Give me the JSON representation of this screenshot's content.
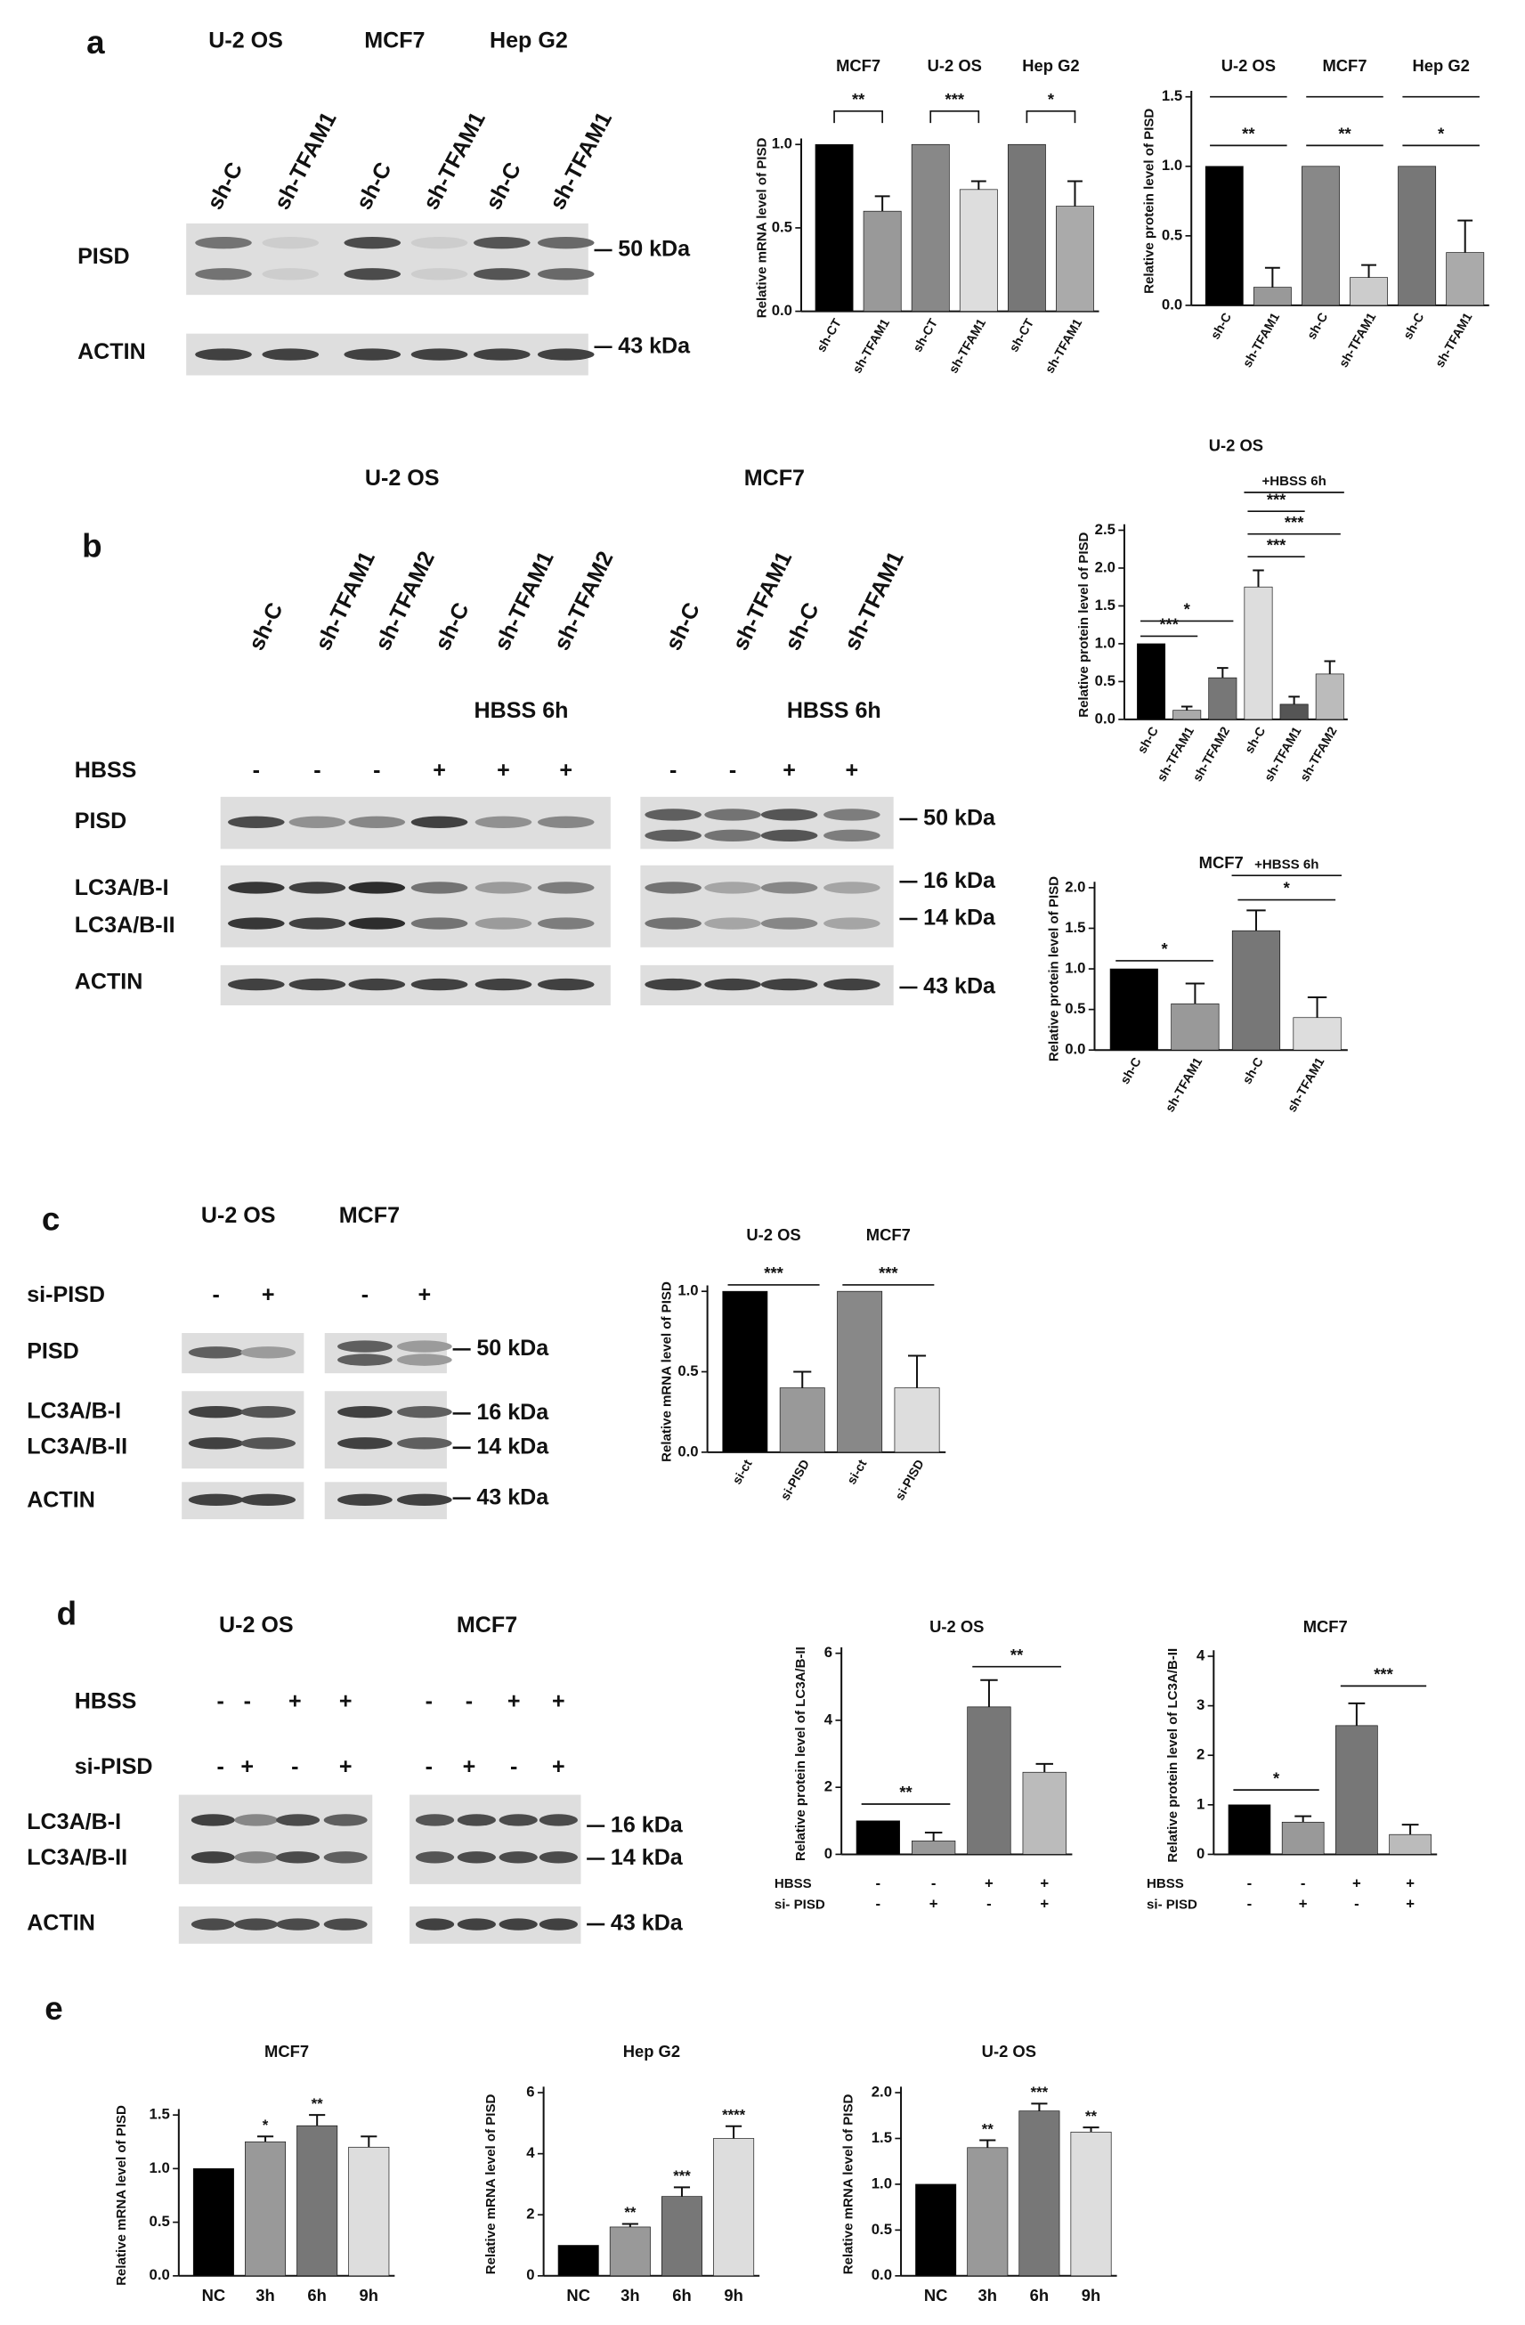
{
  "figure": {
    "a": {
      "label": "a",
      "cell_lines": [
        "U-2 OS",
        "MCF7",
        "Hep G2"
      ],
      "lanes": [
        "sh-C",
        "sh-TFAM1",
        "sh-C",
        "sh-TFAM1",
        "sh-C",
        "sh-TFAM1"
      ],
      "rows": [
        "PISD",
        "ACTIN"
      ],
      "markers": [
        "50 kDa",
        "43 kDa"
      ]
    },
    "b": {
      "label": "b",
      "cell_lines": [
        "U-2 OS",
        "MCF7"
      ],
      "lanes": [
        "sh-C",
        "sh-TFAM1",
        "sh-TFAM2",
        "sh-C",
        "sh-TFAM1",
        "sh-TFAM2",
        "sh-C",
        "sh-TFAM1",
        "sh-C",
        "sh-TFAM1"
      ],
      "treatment_labels": [
        "HBSS 6h",
        "HBSS 6h"
      ],
      "condition": {
        "label": "HBSS",
        "signs": [
          "-",
          "-",
          "-",
          "+",
          "+",
          "+",
          "-",
          "-",
          "+",
          "+"
        ]
      },
      "rows": [
        "PISD",
        "LC3A/B-I",
        "LC3A/B-II",
        "ACTIN"
      ],
      "markers": [
        "50 kDa",
        "16 kDa",
        "14 kDa",
        "43 kDa"
      ]
    },
    "c": {
      "label": "c",
      "cell_lines": [
        "U-2 OS",
        "MCF7"
      ],
      "condition": {
        "label": "si-PISD",
        "signs": [
          "-",
          "+",
          "-",
          "+"
        ]
      },
      "rows": [
        "PISD",
        "LC3A/B-I",
        "LC3A/B-II",
        "ACTIN"
      ],
      "markers": [
        "50 kDa",
        "16 kDa",
        "14 kDa",
        "43 kDa"
      ]
    },
    "d": {
      "label": "d",
      "cell_lines": [
        "U-2 OS",
        "MCF7"
      ],
      "conditions": [
        {
          "label": "HBSS",
          "signs": [
            "-",
            "-",
            "+",
            "+",
            "-",
            "-",
            "+",
            "+"
          ]
        },
        {
          "label": "si-PISD",
          "signs": [
            "-",
            "+",
            "-",
            "+",
            "-",
            "+",
            "-",
            "+"
          ]
        }
      ],
      "rows": [
        "LC3A/B-I",
        "LC3A/B-II",
        "ACTIN"
      ],
      "markers": [
        "16 kDa",
        "14 kDa",
        "43 kDa"
      ]
    },
    "e": {
      "label": "e"
    }
  },
  "chart_data": [
    {
      "type": "bar",
      "groups": [
        "MCF7",
        "U-2 OS",
        "Hep G2"
      ],
      "ylabel": "Relative mRNA level of PISD",
      "categories": [
        "sh-CT",
        "sh-TFAM1",
        "sh-CT",
        "sh-TFAM1",
        "sh-CT",
        "sh-TFAM1"
      ],
      "values": [
        1,
        0.6,
        1,
        0.73,
        1,
        0.63
      ],
      "errors": [
        0,
        0.09,
        0,
        0.05,
        0,
        0.15
      ],
      "colors": [
        "#000000",
        "#999999",
        "#888888",
        "#dddddd",
        "#777777",
        "#aaaaaa"
      ],
      "ylim": [
        0,
        1.0
      ],
      "yticks": [
        {
          "value": 0,
          "label": "0.0"
        },
        0.5,
        {
          "value": 1,
          "label": "1.0"
        }
      ],
      "annotations": [
        "**",
        "***",
        "*"
      ]
    },
    {
      "type": "bar",
      "groups": [
        "U-2 OS",
        "MCF7",
        "Hep G2"
      ],
      "ylabel": "Relative protein level of PISD",
      "categories": [
        "sh-C",
        "sh-TFAM1",
        "sh-C",
        "sh-TFAM1",
        "sh-C",
        "sh-TFAM1"
      ],
      "values": [
        1,
        0.13,
        1,
        0.2,
        1,
        0.38
      ],
      "errors": [
        0,
        0.14,
        0,
        0.09,
        0,
        0.23
      ],
      "colors": [
        "#000000",
        "#999999",
        "#888888",
        "#cccccc",
        "#777777",
        "#aaaaaa"
      ],
      "ylim": [
        0,
        1.5
      ],
      "yticks": [
        {
          "value": 0,
          "label": "0.0"
        },
        0.5,
        {
          "value": 1,
          "label": "1.0"
        },
        1.5
      ],
      "annotations": [
        "**",
        "**",
        "*"
      ]
    },
    {
      "type": "bar",
      "title": "U-2 OS",
      "ylabel": "Relative protein level of PISD",
      "categories": [
        "sh-C",
        "sh-TFAM1",
        "sh-TFAM2",
        "sh-C",
        "sh-TFAM1",
        "sh-TFAM2"
      ],
      "values": [
        1,
        0.12,
        0.55,
        1.75,
        0.2,
        0.6
      ],
      "errors": [
        0,
        0.05,
        0.13,
        0.22,
        0.1,
        0.17
      ],
      "colors": [
        "#000000",
        "#aaaaaa",
        "#777777",
        "#dddddd",
        "#555555",
        "#bbbbbb"
      ],
      "ylim": [
        0,
        2.5
      ],
      "yticks": [
        {
          "value": 0,
          "label": "0.0"
        },
        0.5,
        {
          "value": 1,
          "label": "1.0"
        },
        1.5,
        {
          "value": 2,
          "label": "2.0"
        },
        2.5
      ],
      "bracket_label": "+HBSS 6h",
      "annotations": [
        "*",
        "***",
        "***",
        "***",
        "***"
      ]
    },
    {
      "type": "bar",
      "title": "MCF7",
      "ylabel": "Relative protein level of PISD",
      "categories": [
        "sh-C",
        "sh-TFAM1",
        "sh-C",
        "sh-TFAM1"
      ],
      "values": [
        1,
        0.57,
        1.47,
        0.4
      ],
      "errors": [
        0,
        0.25,
        0.25,
        0.25
      ],
      "colors": [
        "#000000",
        "#999999",
        "#777777",
        "#dddddd"
      ],
      "ylim": [
        0,
        2.0
      ],
      "yticks": [
        {
          "value": 0,
          "label": "0.0"
        },
        0.5,
        {
          "value": 1,
          "label": "1.0"
        },
        1.5,
        {
          "value": 2,
          "label": "2.0"
        }
      ],
      "bracket_label": "+HBSS 6h",
      "annotations": [
        "*",
        "*"
      ]
    },
    {
      "type": "bar",
      "groups": [
        "U-2 OS",
        "MCF7"
      ],
      "ylabel": "Relative mRNA level of PISD",
      "categories": [
        "si-ct",
        "si-PISD",
        "si-ct",
        "si-PISD"
      ],
      "values": [
        1,
        0.4,
        1,
        0.4
      ],
      "errors": [
        0,
        0.1,
        0,
        0.2
      ],
      "colors": [
        "#000000",
        "#999999",
        "#888888",
        "#dddddd"
      ],
      "ylim": [
        0,
        1.0
      ],
      "yticks": [
        {
          "value": 0,
          "label": "0.0"
        },
        0.5,
        {
          "value": 1,
          "label": "1.0"
        }
      ],
      "annotations": [
        "***",
        "***"
      ]
    },
    {
      "type": "bar",
      "title": "U-2 OS",
      "ylabel": "Relative protein level of LC3A/B-II",
      "conditions": [
        {
          "label": "HBSS",
          "signs": [
            "-",
            "-",
            "+",
            "+"
          ]
        },
        {
          "label": "si- PISD",
          "signs": [
            "-",
            "+",
            "-",
            "+"
          ]
        }
      ],
      "values": [
        1,
        0.4,
        4.4,
        2.45
      ],
      "errors": [
        0,
        0.25,
        0.8,
        0.25
      ],
      "colors": [
        "#000000",
        "#999999",
        "#777777",
        "#bbbbbb"
      ],
      "ylim": [
        0,
        6
      ],
      "yticks": [
        0,
        2,
        4,
        6
      ],
      "annotations": [
        "**",
        "**"
      ]
    },
    {
      "type": "bar",
      "title": "MCF7",
      "ylabel": "Relative protein level of LC3A/B-II",
      "conditions": [
        {
          "label": "HBSS",
          "signs": [
            "-",
            "-",
            "+",
            "+"
          ]
        },
        {
          "label": "si- PISD",
          "signs": [
            "-",
            "+",
            "-",
            "+"
          ]
        }
      ],
      "values": [
        1,
        0.65,
        2.6,
        0.4
      ],
      "errors": [
        0,
        0.12,
        0.45,
        0.2
      ],
      "colors": [
        "#000000",
        "#999999",
        "#777777",
        "#bbbbbb"
      ],
      "ylim": [
        0,
        4
      ],
      "yticks": [
        0,
        1,
        2,
        3,
        4
      ],
      "annotations": [
        "*",
        "***"
      ]
    },
    {
      "type": "bar",
      "title": "MCF7",
      "ylabel": "Relative mRNA level of PISD",
      "categories": [
        "NC",
        "3h",
        "6h",
        "9h"
      ],
      "values": [
        1,
        1.25,
        1.4,
        1.2
      ],
      "errors": [
        0,
        0.05,
        0.1,
        0.1
      ],
      "colors": [
        "#000000",
        "#999999",
        "#777777",
        "#dddddd"
      ],
      "ylim": [
        0,
        1.5
      ],
      "yticks": [
        {
          "value": 0,
          "label": "0.0"
        },
        0.5,
        {
          "value": 1,
          "label": "1.0"
        },
        1.5
      ],
      "annotations": [
        "*",
        "**"
      ]
    },
    {
      "type": "bar",
      "title": "Hep G2",
      "ylabel": "Relative mRNA level of PISD",
      "categories": [
        "NC",
        "3h",
        "6h",
        "9h"
      ],
      "values": [
        1,
        1.6,
        2.6,
        4.5
      ],
      "errors": [
        0,
        0.1,
        0.3,
        0.4
      ],
      "colors": [
        "#000000",
        "#999999",
        "#777777",
        "#dddddd"
      ],
      "ylim": [
        0,
        6
      ],
      "yticks": [
        0,
        2,
        4,
        6
      ],
      "annotations": [
        "**",
        "***",
        "****"
      ]
    },
    {
      "type": "bar",
      "title": "U-2 OS",
      "ylabel": "Relative mRNA level of PISD",
      "categories": [
        "NC",
        "3h",
        "6h",
        "9h"
      ],
      "values": [
        1,
        1.4,
        1.8,
        1.57
      ],
      "errors": [
        0,
        0.08,
        0.08,
        0.05
      ],
      "colors": [
        "#000000",
        "#999999",
        "#777777",
        "#dddddd"
      ],
      "ylim": [
        0,
        2.0
      ],
      "yticks": [
        {
          "value": 0,
          "label": "0.0"
        },
        0.5,
        {
          "value": 1,
          "label": "1.0"
        },
        1.5,
        {
          "value": 2,
          "label": "2.0"
        }
      ],
      "annotations": [
        "**",
        "***",
        "**"
      ]
    }
  ]
}
